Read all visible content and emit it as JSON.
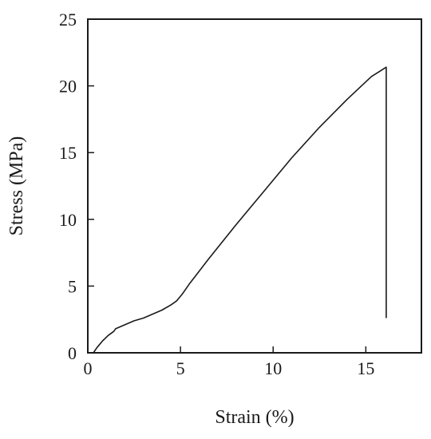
{
  "chart_data": {
    "type": "line",
    "title": "",
    "xlabel": "Strain (%)",
    "ylabel": "Stress (MPa)",
    "xlim": [
      0,
      18
    ],
    "ylim": [
      0,
      25
    ],
    "xticks": [
      0,
      5,
      10,
      15
    ],
    "yticks": [
      0,
      5,
      10,
      15,
      20,
      25
    ],
    "grid": false,
    "legend": "none",
    "line_color": "#1a1a1a",
    "series": [
      {
        "x": [
          0.3,
          0.5,
          0.8,
          1.1,
          1.4,
          1.5,
          2.0,
          2.5,
          3.0,
          3.5,
          4.0,
          4.5,
          4.8,
          5.1,
          5.5,
          6.5,
          8.0,
          9.5,
          11.0,
          12.5,
          14.0,
          15.3,
          16.1,
          16.1,
          16.1
        ],
        "y": [
          0.0,
          0.4,
          0.9,
          1.3,
          1.6,
          1.8,
          2.1,
          2.4,
          2.6,
          2.9,
          3.2,
          3.6,
          3.9,
          4.4,
          5.2,
          7.0,
          9.6,
          12.1,
          14.6,
          16.9,
          19.0,
          20.7,
          21.4,
          10.0,
          2.6
        ]
      }
    ]
  }
}
